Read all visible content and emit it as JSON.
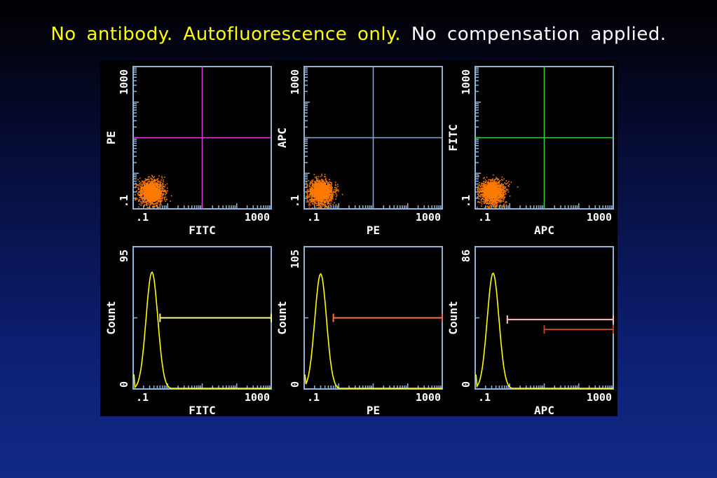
{
  "title": {
    "part1": "No antibody. Autofluorescence only.",
    "part2": "No compensation applied."
  },
  "colors": {
    "axis": "#8eb3d6",
    "dots": "#ff7a00",
    "histogram": "#ffff00",
    "label": "#ffffff",
    "title_highlight": "#ffff00",
    "title_normal": "#ffffff"
  },
  "chart_data": [
    {
      "type": "scatter",
      "xlabel": "FITC",
      "ylabel": "PE",
      "scale": "log",
      "xlim": [
        0.1,
        1000
      ],
      "ylim": [
        0.1,
        1000
      ],
      "x_ticks": [
        ".1",
        "1000"
      ],
      "y_ticks": [
        ".1",
        "1000"
      ],
      "population": {
        "center_x": 0.32,
        "center_y": 0.3
      },
      "gate": {
        "x": 10,
        "y": 10,
        "color": "#e040e0"
      }
    },
    {
      "type": "scatter",
      "xlabel": "PE",
      "ylabel": "APC",
      "scale": "log",
      "xlim": [
        0.1,
        1000
      ],
      "ylim": [
        0.1,
        1000
      ],
      "x_ticks": [
        ".1",
        "1000"
      ],
      "y_ticks": [
        ".1",
        "1000"
      ],
      "population": {
        "center_x": 0.3,
        "center_y": 0.3
      },
      "gate": {
        "x": 10,
        "y": 10,
        "color": "#8aaad0"
      }
    },
    {
      "type": "scatter",
      "xlabel": "APC",
      "ylabel": "FITC",
      "scale": "log",
      "xlim": [
        0.1,
        1000
      ],
      "ylim": [
        0.1,
        1000
      ],
      "x_ticks": [
        ".1",
        "1000"
      ],
      "y_ticks": [
        ".1",
        "1000"
      ],
      "population": {
        "center_x": 0.3,
        "center_y": 0.3
      },
      "gate": {
        "x": 10,
        "y": 10,
        "color": "#40cc40"
      }
    },
    {
      "type": "line",
      "xlabel": "FITC",
      "ylabel": "Count",
      "scale": "log",
      "xlim": [
        0.1,
        1000
      ],
      "ylim": [
        0,
        95
      ],
      "x_ticks": [
        ".1",
        "1000"
      ],
      "y_ticks": [
        "0",
        "95"
      ],
      "peak": {
        "x": 0.35,
        "y": 78
      },
      "markers": [
        {
          "x_start": 0.6,
          "x_end": 1000,
          "y": 47.5,
          "color": "#ffff80"
        }
      ]
    },
    {
      "type": "line",
      "xlabel": "PE",
      "ylabel": "Count",
      "scale": "log",
      "xlim": [
        0.1,
        1000
      ],
      "ylim": [
        0,
        105
      ],
      "x_ticks": [
        ".1",
        "1000"
      ],
      "y_ticks": [
        "0",
        "105"
      ],
      "peak": {
        "x": 0.3,
        "y": 85
      },
      "markers": [
        {
          "x_start": 0.7,
          "x_end": 1000,
          "y": 52.5,
          "color": "#ff7040"
        }
      ]
    },
    {
      "type": "line",
      "xlabel": "APC",
      "ylabel": "Count",
      "scale": "log",
      "xlim": [
        0.1,
        1000
      ],
      "ylim": [
        0,
        86
      ],
      "x_ticks": [
        ".1",
        "1000"
      ],
      "y_ticks": [
        "0",
        "86"
      ],
      "peak": {
        "x": 0.33,
        "y": 70
      },
      "markers": [
        {
          "x_start": 0.85,
          "x_end": 1000,
          "y": 42,
          "color": "#ffc0c0"
        },
        {
          "x_start": 10,
          "x_end": 1000,
          "y": 36,
          "color": "#c04020"
        }
      ]
    }
  ]
}
